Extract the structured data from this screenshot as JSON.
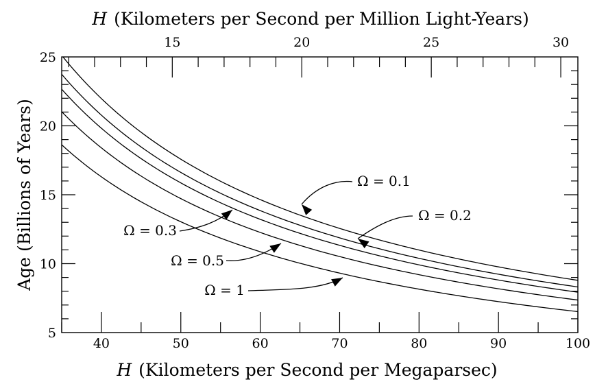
{
  "chart_data": {
    "type": "line",
    "title": "",
    "xlabel_bottom_var": "H",
    "xlabel_bottom_rest": "(Kilometers per Second per Megaparsec)",
    "xlabel_top_var": "H",
    "xlabel_top_rest": "(Kilometers per Second per Million Light-Years)",
    "ylabel": "Age (Billions of Years)",
    "xlim": [
      35,
      100
    ],
    "ylim": [
      5,
      25
    ],
    "top_xlim": [
      10.73,
      30.66
    ],
    "x_ticks": [
      "40",
      "50",
      "60",
      "70",
      "80",
      "90",
      "100"
    ],
    "x_tick_values": [
      40,
      50,
      60,
      70,
      80,
      90,
      100
    ],
    "y_ticks": [
      "5",
      "10",
      "15",
      "20",
      "25"
    ],
    "y_tick_values": [
      5,
      10,
      15,
      20,
      25
    ],
    "top_ticks": [
      "15",
      "20",
      "25",
      "30"
    ],
    "top_tick_values": [
      15,
      20,
      25,
      30
    ],
    "x": [
      35,
      40,
      50,
      60,
      70,
      80,
      90,
      100
    ],
    "series": [
      {
        "name": "Ω = 0.1",
        "values": [
          25.12,
          21.98,
          17.58,
          14.65,
          12.56,
          10.99,
          9.77,
          8.79
        ]
      },
      {
        "name": "Ω = 0.2",
        "values": [
          23.75,
          20.78,
          16.62,
          13.85,
          11.87,
          10.39,
          9.24,
          8.31
        ]
      },
      {
        "name": "Ω = 0.3",
        "values": [
          22.66,
          19.83,
          15.86,
          13.22,
          11.33,
          9.91,
          8.81,
          7.93
        ]
      },
      {
        "name": "Ω = 0.5",
        "values": [
          21.04,
          18.41,
          14.73,
          12.27,
          10.52,
          9.2,
          8.18,
          7.36
        ]
      },
      {
        "name": "Ω = 1",
        "values": [
          18.63,
          16.3,
          13.04,
          10.87,
          9.31,
          8.15,
          7.24,
          6.52
        ]
      }
    ],
    "annotations": [
      {
        "text": "Ω = 0.1",
        "points_to_series": "Ω = 0.1"
      },
      {
        "text": "Ω = 0.2",
        "points_to_series": "Ω = 0.2"
      },
      {
        "text": "Ω = 0.3",
        "points_to_series": "Ω = 0.3"
      },
      {
        "text": "Ω = 0.5",
        "points_to_series": "Ω = 0.5"
      },
      {
        "text": "Ω = 1",
        "points_to_series": "Ω = 1"
      }
    ],
    "grid": false,
    "legend": "none"
  }
}
